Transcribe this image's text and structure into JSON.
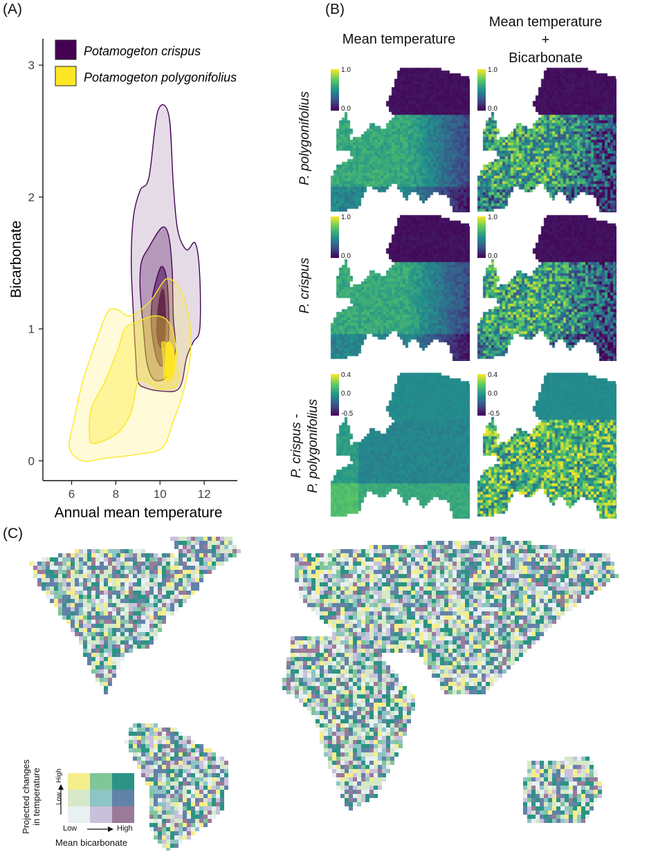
{
  "panels": {
    "a": "(A)",
    "b": "(B)",
    "c": "(C)"
  },
  "chart_data": [
    {
      "type": "density-contour",
      "panel": "(A)",
      "xlabel": "Annual mean temperature",
      "ylabel": "Bicarbonate",
      "xlim": [
        4.7,
        13.5
      ],
      "ylim": [
        -0.15,
        3.2
      ],
      "x_ticks": [
        6,
        8,
        10,
        12
      ],
      "y_ticks": [
        0,
        1,
        2,
        3
      ],
      "legend_position": "top-left",
      "series": [
        {
          "name": "Potamogeton crispus",
          "color": "#440154",
          "levels": [
            [
              [
                9.9,
                2.65
              ],
              [
                10.4,
                2.62
              ],
              [
                10.6,
                2.1
              ],
              [
                10.8,
                1.75
              ],
              [
                11.2,
                1.6
              ],
              [
                11.6,
                1.65
              ],
              [
                11.8,
                1.4
              ],
              [
                11.8,
                1.0
              ],
              [
                11.5,
                0.9
              ],
              [
                11.2,
                0.78
              ],
              [
                11.0,
                0.6
              ],
              [
                10.7,
                0.53
              ],
              [
                10.0,
                0.53
              ],
              [
                9.4,
                0.55
              ],
              [
                9.0,
                0.6
              ],
              [
                8.9,
                0.8
              ],
              [
                8.8,
                1.1
              ],
              [
                8.7,
                1.5
              ],
              [
                8.8,
                1.85
              ],
              [
                9.1,
                2.05
              ],
              [
                9.5,
                2.15
              ]
            ],
            [
              [
                9.5,
                1.62
              ],
              [
                10.1,
                1.77
              ],
              [
                10.4,
                1.7
              ],
              [
                10.55,
                1.45
              ],
              [
                10.6,
                1.1
              ],
              [
                10.7,
                0.85
              ],
              [
                10.45,
                0.7
              ],
              [
                10.2,
                0.62
              ],
              [
                9.7,
                0.62
              ],
              [
                9.4,
                0.75
              ],
              [
                9.25,
                1.0
              ],
              [
                9.1,
                1.3
              ],
              [
                9.15,
                1.5
              ]
            ],
            [
              [
                9.7,
                1.28
              ],
              [
                10.05,
                1.47
              ],
              [
                10.3,
                1.38
              ],
              [
                10.4,
                1.1
              ],
              [
                10.35,
                0.85
              ],
              [
                10.1,
                0.72
              ],
              [
                9.85,
                0.78
              ],
              [
                9.65,
                0.95
              ],
              [
                9.6,
                1.1
              ]
            ],
            [
              [
                9.95,
                1.2
              ],
              [
                10.15,
                1.3
              ],
              [
                10.25,
                1.1
              ],
              [
                10.2,
                0.9
              ],
              [
                10.0,
                0.86
              ],
              [
                9.85,
                0.98
              ]
            ]
          ]
        },
        {
          "name": "Potamogeton polygonifolius",
          "color": "#fde725",
          "levels": [
            [
              [
                10.3,
                1.38
              ],
              [
                10.9,
                1.3
              ],
              [
                11.3,
                1.1
              ],
              [
                11.4,
                0.85
              ],
              [
                11.1,
                0.55
              ],
              [
                10.6,
                0.3
              ],
              [
                10.1,
                0.1
              ],
              [
                9.0,
                0.05
              ],
              [
                7.5,
                0.02
              ],
              [
                6.5,
                0.0
              ],
              [
                5.9,
                0.1
              ],
              [
                6.1,
                0.3
              ],
              [
                6.5,
                0.6
              ],
              [
                7.1,
                0.9
              ],
              [
                7.6,
                1.12
              ],
              [
                8.0,
                1.15
              ],
              [
                8.7,
                1.1
              ],
              [
                9.6,
                1.22
              ]
            ],
            [
              [
                9.8,
                1.1
              ],
              [
                10.4,
                1.05
              ],
              [
                10.7,
                0.88
              ],
              [
                10.8,
                0.6
              ],
              [
                10.4,
                0.55
              ],
              [
                9.9,
                0.55
              ],
              [
                9.4,
                0.6
              ],
              [
                9.0,
                0.6
              ],
              [
                8.75,
                0.4
              ],
              [
                8.5,
                0.3
              ],
              [
                8.0,
                0.2
              ],
              [
                7.0,
                0.13
              ],
              [
                6.8,
                0.2
              ],
              [
                6.9,
                0.4
              ],
              [
                7.5,
                0.6
              ],
              [
                8.1,
                0.85
              ],
              [
                8.4,
                1.0
              ],
              [
                8.9,
                1.05
              ]
            ],
            [
              [
                10.1,
                0.9
              ],
              [
                10.5,
                0.85
              ],
              [
                10.6,
                0.72
              ],
              [
                10.4,
                0.6
              ],
              [
                10.2,
                0.63
              ],
              [
                10.15,
                0.78
              ]
            ],
            [
              [
                10.35,
                0.9
              ],
              [
                10.6,
                0.85
              ],
              [
                10.65,
                0.7
              ],
              [
                10.5,
                0.62
              ],
              [
                10.3,
                0.65
              ],
              [
                10.25,
                0.78
              ]
            ]
          ]
        }
      ]
    },
    {
      "type": "heatmap",
      "panel": "(B)",
      "columns": [
        "Mean temperature",
        "Mean temperature\n+\nBicarbonate"
      ],
      "rows": [
        "P. polygonifolius",
        "P. crispus",
        "P. crispus -\nP. polygonifolius"
      ],
      "scales": [
        {
          "max": "1.0",
          "min": "0.0"
        },
        {
          "max": "1.0",
          "min": "0.0"
        },
        {
          "max": "0.4",
          "mid": "0.0",
          "min": "-0.5"
        }
      ]
    },
    {
      "type": "heatmap",
      "panel": "(C)",
      "legend": {
        "x_label": "Mean bicarbonate",
        "y_label": "Projected changes in temperature",
        "y_label_lines": [
          "Projected changes",
          "in temperature"
        ],
        "low": "Low",
        "high": "High",
        "colors": [
          [
            "#f5ee8c",
            "#7fc699",
            "#2b9484"
          ],
          [
            "#d6e8c8",
            "#8ec5c4",
            "#6282a8"
          ],
          [
            "#e8f0f2",
            "#c9c1dc",
            "#9b7a98"
          ]
        ]
      }
    }
  ]
}
